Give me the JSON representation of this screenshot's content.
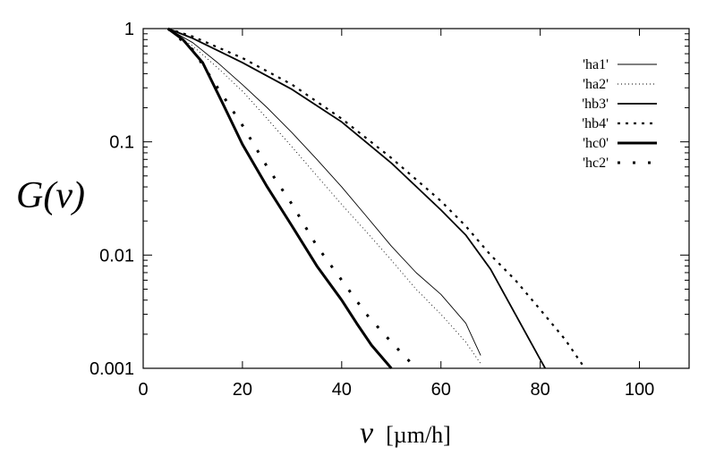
{
  "chart_data": {
    "type": "line",
    "title": "",
    "xlabel": {
      "symbol": "v",
      "unit": "[µm/h]"
    },
    "ylabel": "G(v)",
    "xlim": [
      0,
      110
    ],
    "ylim": [
      0.001,
      1
    ],
    "yscale": "log",
    "grid": false,
    "legend": "top-right",
    "x_ticks": [
      {
        "value": 0,
        "label": "0"
      },
      {
        "value": 20,
        "label": "20"
      },
      {
        "value": 40,
        "label": "40"
      },
      {
        "value": 60,
        "label": "60"
      },
      {
        "value": 80,
        "label": "80"
      },
      {
        "value": 100,
        "label": "100"
      }
    ],
    "y_ticks": [
      {
        "value": 1,
        "label": "1"
      },
      {
        "value": 0.1,
        "label": "0.1"
      },
      {
        "value": 0.01,
        "label": "0.01"
      },
      {
        "value": 0.001,
        "label": "0.001"
      }
    ],
    "series": [
      {
        "name": "'ha1'",
        "style": "thin-solid",
        "points": [
          [
            5,
            1
          ],
          [
            10,
            0.75
          ],
          [
            15,
            0.5
          ],
          [
            20,
            0.32
          ],
          [
            25,
            0.2
          ],
          [
            30,
            0.12
          ],
          [
            35,
            0.07
          ],
          [
            40,
            0.04
          ],
          [
            45,
            0.022
          ],
          [
            50,
            0.012
          ],
          [
            55,
            0.007
          ],
          [
            60,
            0.0045
          ],
          [
            65,
            0.0025
          ],
          [
            68,
            0.0013
          ]
        ]
      },
      {
        "name": "'ha2'",
        "style": "thin-dotted",
        "points": [
          [
            5,
            1
          ],
          [
            10,
            0.7
          ],
          [
            15,
            0.45
          ],
          [
            20,
            0.28
          ],
          [
            25,
            0.16
          ],
          [
            30,
            0.09
          ],
          [
            35,
            0.05
          ],
          [
            40,
            0.028
          ],
          [
            45,
            0.016
          ],
          [
            50,
            0.009
          ],
          [
            55,
            0.005
          ],
          [
            60,
            0.003
          ],
          [
            65,
            0.0017
          ],
          [
            68,
            0.0011
          ]
        ]
      },
      {
        "name": "'hb3'",
        "style": "medium-solid",
        "points": [
          [
            5,
            1
          ],
          [
            10,
            0.82
          ],
          [
            20,
            0.5
          ],
          [
            30,
            0.29
          ],
          [
            40,
            0.15
          ],
          [
            50,
            0.065
          ],
          [
            60,
            0.025
          ],
          [
            65,
            0.015
          ],
          [
            70,
            0.0075
          ],
          [
            75,
            0.003
          ],
          [
            80,
            0.0012
          ],
          [
            81,
            0.001
          ]
        ]
      },
      {
        "name": "'hb4'",
        "style": "medium-dotted",
        "points": [
          [
            5,
            1
          ],
          [
            10,
            0.85
          ],
          [
            20,
            0.55
          ],
          [
            30,
            0.32
          ],
          [
            40,
            0.16
          ],
          [
            50,
            0.072
          ],
          [
            60,
            0.03
          ],
          [
            65,
            0.018
          ],
          [
            70,
            0.01
          ],
          [
            75,
            0.006
          ],
          [
            80,
            0.0033
          ],
          [
            85,
            0.0018
          ],
          [
            89,
            0.001
          ]
        ]
      },
      {
        "name": "'hc0'",
        "style": "thick-solid",
        "points": [
          [
            5,
            1
          ],
          [
            8,
            0.8
          ],
          [
            12,
            0.5
          ],
          [
            16,
            0.22
          ],
          [
            20,
            0.095
          ],
          [
            25,
            0.04
          ],
          [
            30,
            0.018
          ],
          [
            35,
            0.008
          ],
          [
            40,
            0.004
          ],
          [
            43,
            0.0025
          ],
          [
            46,
            0.0016
          ],
          [
            50,
            0.001
          ]
        ]
      },
      {
        "name": "'hc2'",
        "style": "thick-dotted",
        "points": [
          [
            5,
            1
          ],
          [
            10,
            0.65
          ],
          [
            15,
            0.3
          ],
          [
            20,
            0.14
          ],
          [
            25,
            0.06
          ],
          [
            30,
            0.028
          ],
          [
            35,
            0.012
          ],
          [
            40,
            0.006
          ],
          [
            45,
            0.003
          ],
          [
            50,
            0.0017
          ],
          [
            55,
            0.001
          ]
        ]
      }
    ]
  }
}
